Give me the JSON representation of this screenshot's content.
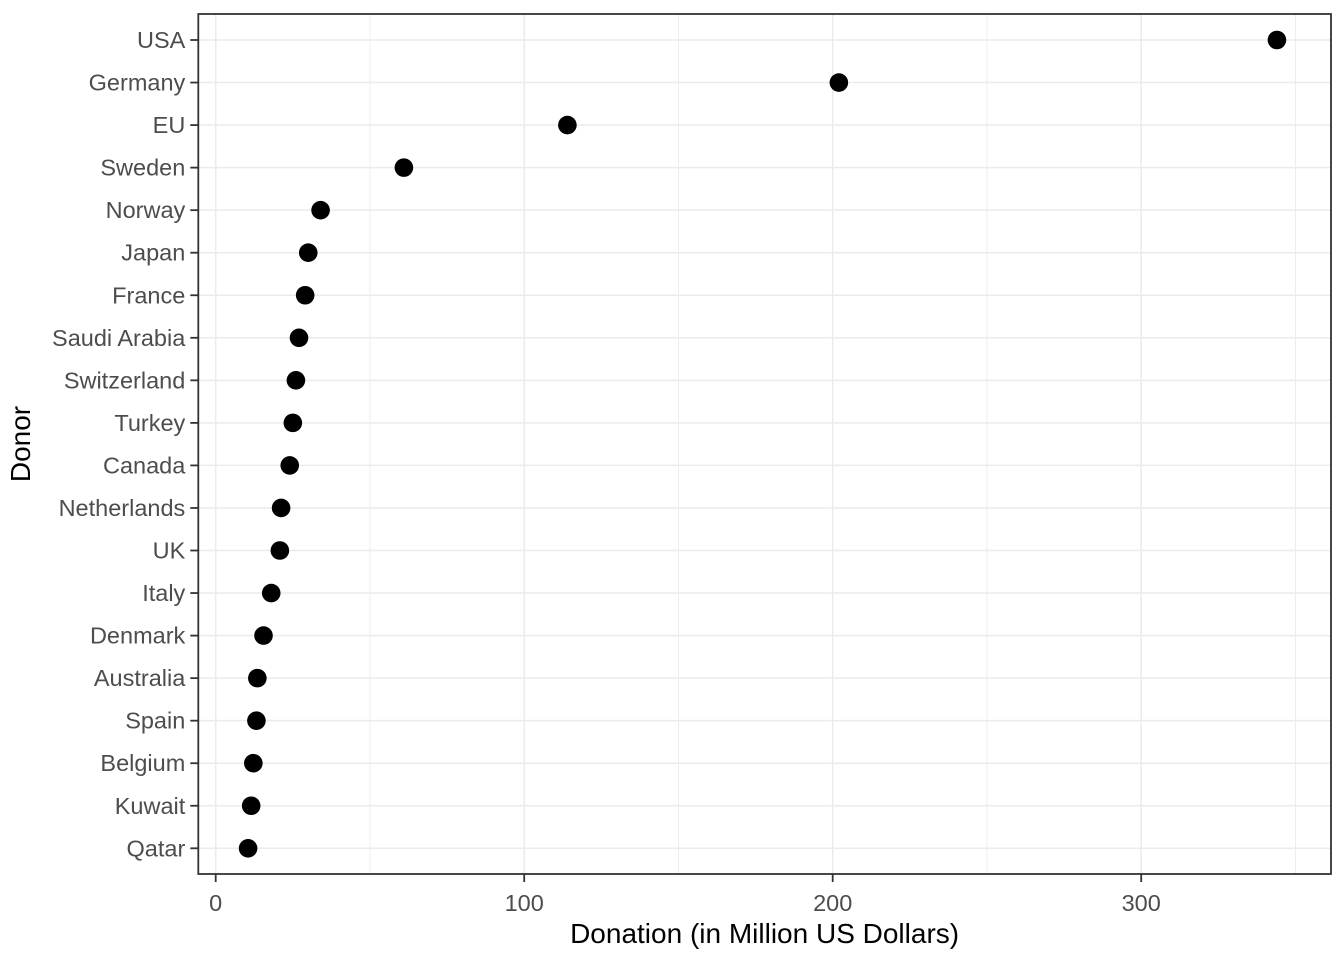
{
  "chart_data": {
    "type": "scatter",
    "subtype": "cleveland-dot-plot",
    "title": "",
    "xlabel": "Donation (in Million US Dollars)",
    "ylabel": "Donor",
    "categories": [
      "USA",
      "Germany",
      "EU",
      "Sweden",
      "Norway",
      "Japan",
      "France",
      "Saudi Arabia",
      "Switzerland",
      "Turkey",
      "Canada",
      "Netherlands",
      "UK",
      "Italy",
      "Denmark",
      "Australia",
      "Spain",
      "Belgium",
      "Kuwait",
      "Qatar"
    ],
    "values": [
      344,
      202,
      114,
      61,
      34,
      30,
      29,
      27,
      26,
      25,
      24,
      21.2,
      20.8,
      18,
      15.5,
      13.5,
      13.2,
      12.2,
      11.5,
      10.5
    ],
    "x_major_ticks": [
      0,
      100,
      200,
      300
    ],
    "x_minor_ticks": [
      50,
      150,
      250,
      350
    ],
    "xlim": [
      -6,
      362
    ],
    "grid": "major-and-minor-vertical, one-horizontal-line-per-category",
    "legend": "none",
    "point_color": "#000000",
    "colors": {
      "background": "#ffffff",
      "grid": "#ebebeb",
      "panel_border": "#333333",
      "axis_text": "#4d4d4d",
      "axis_title": "#000000"
    }
  }
}
